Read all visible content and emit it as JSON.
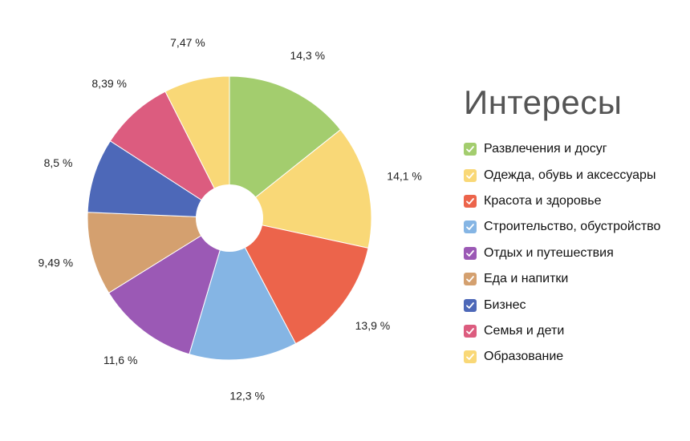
{
  "chart_data": {
    "type": "pie",
    "title": "Интересы",
    "categories": [
      "Развлечения и досуг",
      "Одежда, обувь и аксессуары",
      "Красота и здоровье",
      "Строительство, обустройство",
      "Отдых и путешествия",
      "Еда и напитки",
      "Бизнес",
      "Семья и дети",
      "Образование"
    ],
    "values": [
      14.3,
      14.1,
      13.9,
      12.3,
      11.6,
      9.49,
      8.5,
      8.39,
      7.47
    ],
    "labels": [
      "14,3 %",
      "14,1 %",
      "13,9 %",
      "12,3 %",
      "11,6 %",
      "9,49 %",
      "8,5 %",
      "8,39 %",
      "7,47 %"
    ],
    "colors": [
      "#a3cd6e",
      "#f9d877",
      "#ec644b",
      "#85b5e4",
      "#9b59b5",
      "#d4a06f",
      "#4d68b8",
      "#dc5c7f",
      "#f9d877"
    ],
    "legend_position": "right",
    "donut": true
  }
}
